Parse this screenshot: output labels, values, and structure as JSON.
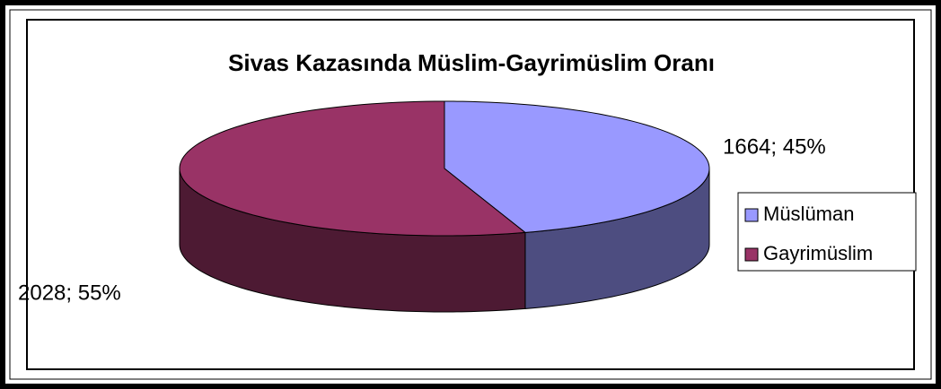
{
  "chart_data": {
    "type": "pie",
    "title": "Sivas Kazasında Müslim-Gayrimüslim Oranı",
    "categories": [
      "Müslüman",
      "Gayrimüslim"
    ],
    "values": [
      1664,
      2028
    ],
    "value_labels": [
      "1664; 45%",
      "2028; 55%"
    ],
    "colors": [
      "#9999ff",
      "#993366"
    ],
    "legend": "right"
  }
}
